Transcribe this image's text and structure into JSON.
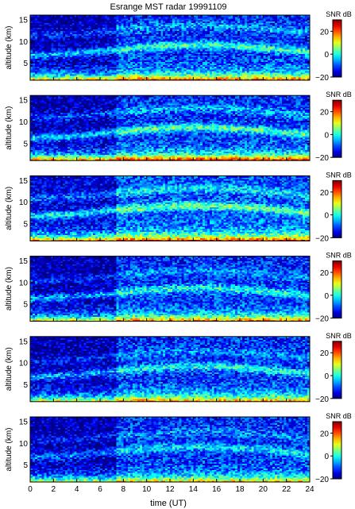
{
  "title": "Esrange MST radar 19991109",
  "chart_data": {
    "type": "heatmap",
    "title": "Esrange MST radar 19991109",
    "xlabel": "time (UT)",
    "ylabel": "altitude (km)",
    "colorbar_label": "SNR dB",
    "xlim": [
      0,
      24
    ],
    "ylim": [
      1,
      16
    ],
    "clim": [
      -20,
      30
    ],
    "x_ticks": [
      "0",
      "2",
      "4",
      "6",
      "8",
      "10",
      "12",
      "14",
      "16",
      "18",
      "20",
      "22",
      "24"
    ],
    "y_ticks": [
      "5",
      "10",
      "15"
    ],
    "colorbar_ticks": [
      "−20",
      "0",
      "20"
    ],
    "colormap": "jet",
    "grid": false,
    "panels": [
      {
        "panel": 1,
        "base_snr_dB": 25,
        "near_top_snr_dB": -12,
        "layers": [
          {
            "alt_km": 8,
            "snr_dB": 5
          },
          {
            "alt_km": 12.5,
            "snr_dB": -4
          }
        ]
      },
      {
        "panel": 2,
        "base_snr_dB": 28,
        "near_top_snr_dB": -12,
        "layers": [
          {
            "alt_km": 7.5,
            "snr_dB": 6
          },
          {
            "alt_km": 12,
            "snr_dB": -3
          }
        ]
      },
      {
        "panel": 3,
        "base_snr_dB": 27,
        "near_top_snr_dB": -10,
        "layers": [
          {
            "alt_km": 8,
            "snr_dB": 8
          },
          {
            "alt_km": 12,
            "snr_dB": 0
          }
        ]
      },
      {
        "panel": 4,
        "base_snr_dB": 22,
        "near_top_snr_dB": -12,
        "layers": [
          {
            "alt_km": 7.5,
            "snr_dB": 3
          },
          {
            "alt_km": 11.5,
            "snr_dB": -5
          }
        ]
      },
      {
        "panel": 5,
        "base_snr_dB": 23,
        "near_top_snr_dB": -12,
        "layers": [
          {
            "alt_km": 8,
            "snr_dB": 3
          },
          {
            "alt_km": 11.5,
            "snr_dB": -5
          }
        ]
      },
      {
        "panel": 6,
        "base_snr_dB": 18,
        "near_top_snr_dB": -12,
        "layers": [
          {
            "alt_km": 8,
            "snr_dB": 0
          },
          {
            "alt_km": 11.5,
            "snr_dB": -6
          }
        ]
      }
    ]
  }
}
